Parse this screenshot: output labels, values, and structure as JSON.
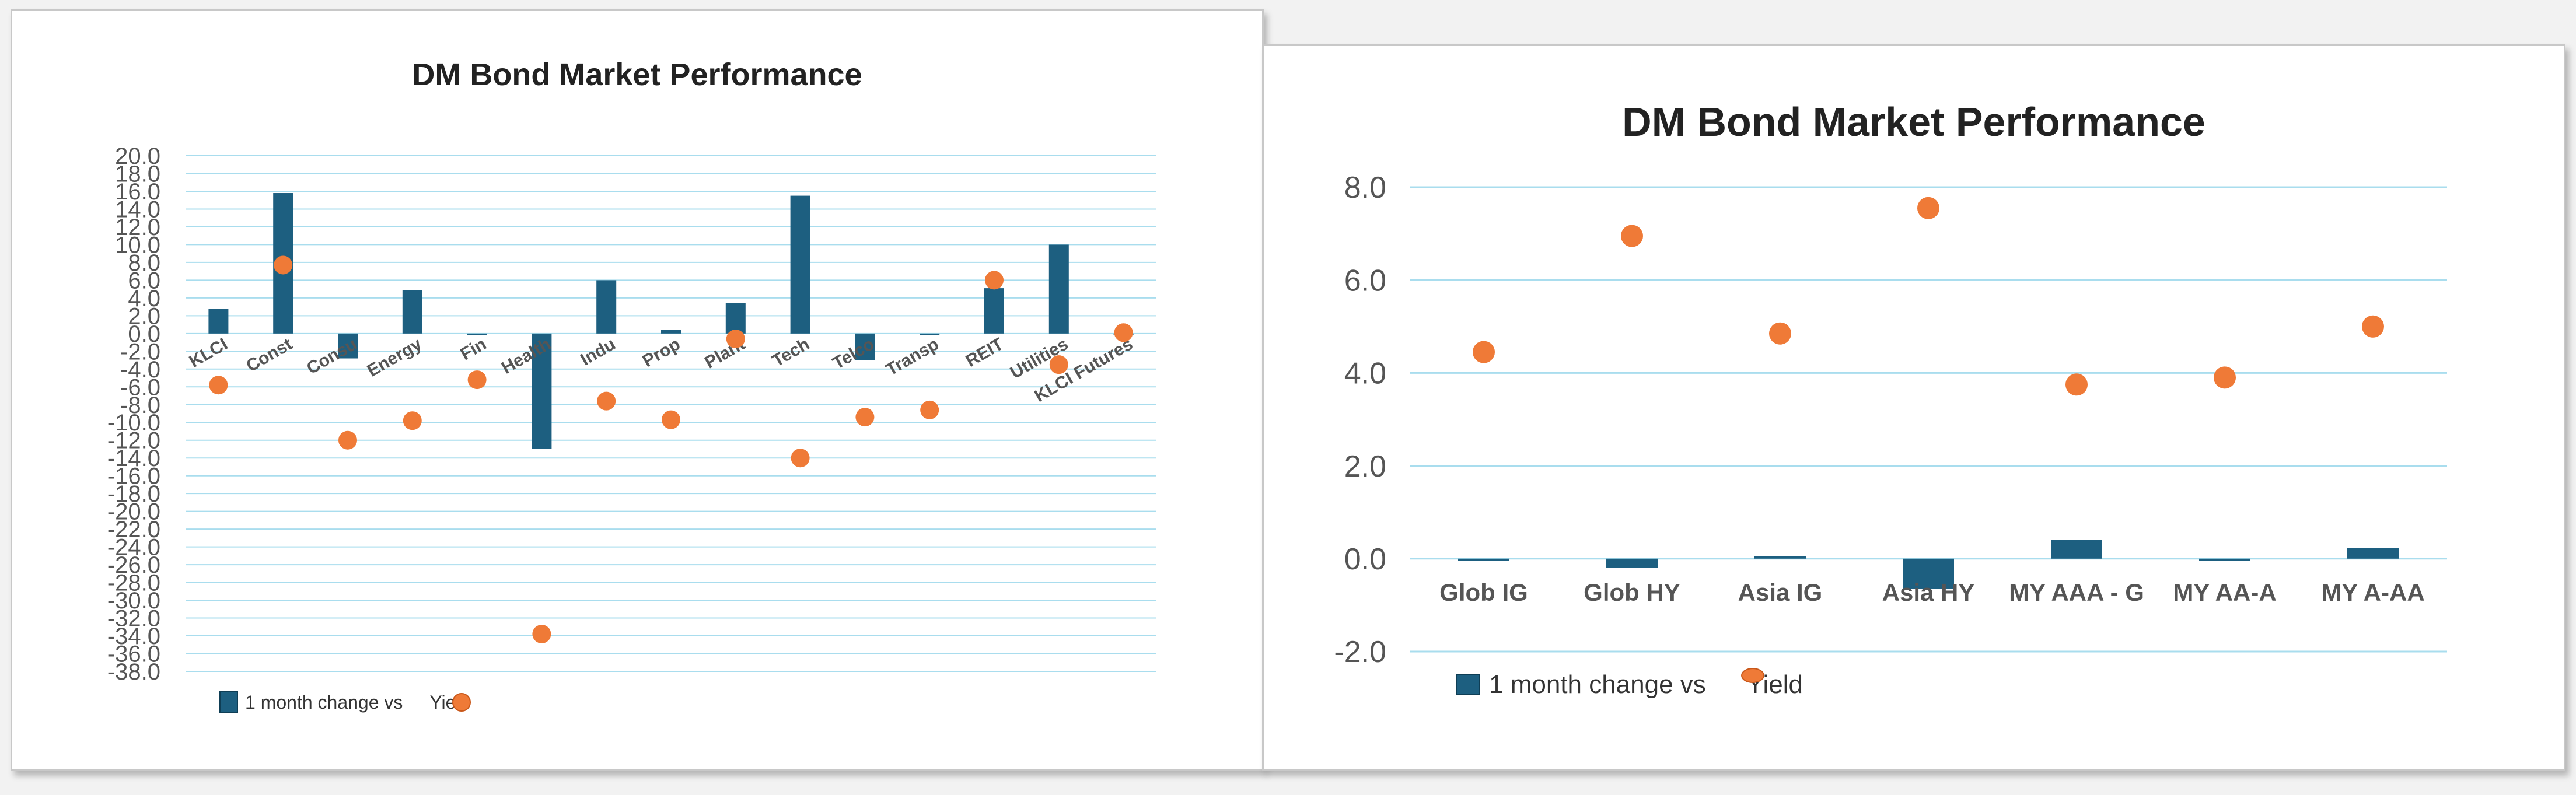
{
  "colors": {
    "bar": "#1d5f80",
    "dot": "#ef7a37",
    "grid": "#a9ddee"
  },
  "chart_data": [
    {
      "type": "bar",
      "title": "DM Bond Market Performance",
      "categories": [
        "KLCI",
        "Const",
        "Consu",
        "Energy",
        "Fin",
        "Health",
        "Indu",
        "Prop",
        "Plant",
        "Tech",
        "Telco",
        "Transp",
        "REIT",
        "Utilities",
        "KLCI Futures"
      ],
      "series": [
        {
          "name": "1 month change vs",
          "kind": "bar",
          "values": [
            2.8,
            15.8,
            -2.8,
            4.9,
            -0.1,
            -13.0,
            6.0,
            0.4,
            3.4,
            15.5,
            -3.0,
            -0.1,
            5.1,
            10.0,
            0.0
          ]
        },
        {
          "name": "Yield",
          "kind": "scatter",
          "values": [
            -5.8,
            7.7,
            -12.0,
            -9.8,
            -5.2,
            -33.8,
            -7.6,
            -9.7,
            -0.6,
            -14.0,
            -9.4,
            -8.6,
            6.0,
            -3.5,
            0.1
          ]
        }
      ],
      "legend_labels": [
        "1 month change vs",
        "Yie"
      ],
      "ylim": [
        -38,
        20
      ],
      "yticks": [
        20.0,
        18.0,
        16.0,
        14.0,
        12.0,
        10.0,
        8.0,
        6.0,
        4.0,
        2.0,
        0.0,
        -2.0,
        -4.0,
        -6.0,
        -8.0,
        -10.0,
        -12.0,
        -14.0,
        -16.0,
        -18.0,
        -20.0,
        -22.0,
        -24.0,
        -26.0,
        -28.0,
        -30.0,
        -32.0,
        -34.0,
        -36.0,
        -38.0
      ],
      "grid": true,
      "legend": "bottom-left"
    },
    {
      "type": "bar",
      "title": "DM Bond Market Performance",
      "categories": [
        "Glob IG",
        "Glob HY",
        "Asia IG",
        "Asia HY",
        "MY AAA - G",
        "MY AA-A",
        "MY A-AA"
      ],
      "series": [
        {
          "name": "1 month change vs",
          "kind": "bar",
          "values": [
            -0.05,
            -0.2,
            0.05,
            -0.65,
            0.4,
            -0.05,
            0.23
          ]
        },
        {
          "name": "Yield",
          "kind": "scatter",
          "values": [
            4.45,
            6.95,
            4.85,
            7.55,
            3.75,
            3.9,
            5.0
          ]
        }
      ],
      "legend_labels": [
        "1 month change vs",
        "Yield"
      ],
      "ylim": [
        -2,
        8
      ],
      "yticks": [
        8.0,
        6.0,
        4.0,
        2.0,
        0.0,
        -2.0
      ],
      "grid": true,
      "legend": "bottom-left"
    }
  ]
}
